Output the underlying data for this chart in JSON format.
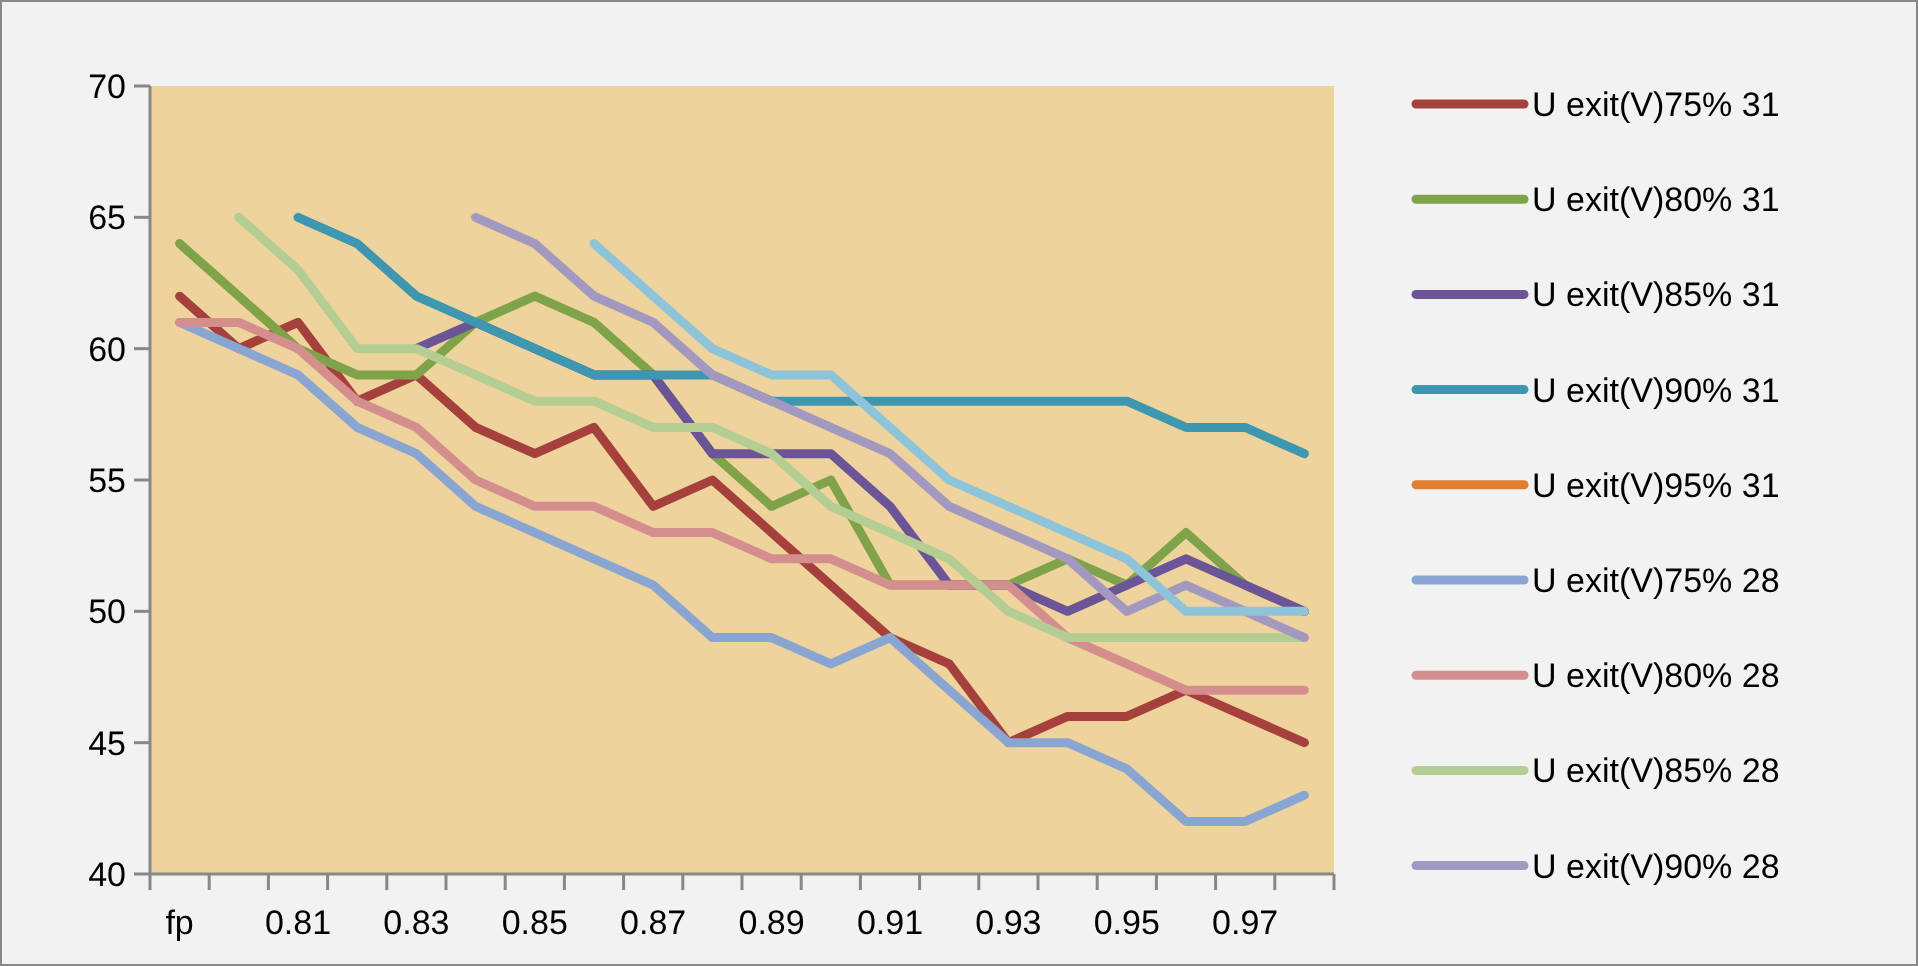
{
  "chart_data": {
    "type": "line",
    "categories": [
      "fp",
      null,
      "0.81",
      null,
      "0.83",
      null,
      "0.85",
      null,
      "0.87",
      null,
      "0.89",
      null,
      "0.91",
      null,
      "0.93",
      null,
      "0.95",
      null,
      "0.97",
      null
    ],
    "ylim": [
      40,
      70
    ],
    "yticks": [
      40,
      45,
      50,
      55,
      60,
      65,
      70
    ],
    "grid": false,
    "legend": "right",
    "marker": "none",
    "line_style": "solid",
    "series": [
      {
        "name": "U exit(V)75% 31",
        "color": "#a5403d",
        "values": [
          62,
          60,
          61,
          58,
          59,
          57,
          56,
          57,
          54,
          55,
          53,
          51,
          49,
          48,
          45,
          46,
          46,
          47,
          46,
          45
        ]
      },
      {
        "name": "U exit(V)80% 31",
        "color": "#7fa348",
        "values": [
          64,
          62,
          60,
          59,
          59,
          61,
          62,
          61,
          59,
          56,
          54,
          55,
          51,
          51,
          51,
          52,
          51,
          53,
          51,
          50
        ]
      },
      {
        "name": "U exit(V)85% 31",
        "color": "#6b5497",
        "values": [
          null,
          null,
          null,
          null,
          60,
          61,
          60,
          59,
          59,
          56,
          56,
          56,
          54,
          51,
          51,
          50,
          51,
          52,
          51,
          50
        ]
      },
      {
        "name": "U exit(V)90% 31",
        "color": "#3d97b1",
        "values": [
          null,
          null,
          65,
          64,
          62,
          61,
          60,
          59,
          59,
          59,
          58,
          58,
          58,
          58,
          58,
          58,
          58,
          57,
          57,
          56
        ]
      },
      {
        "name": "U exit(V)95% 31",
        "color": "#e07f33",
        "values": [
          null,
          null,
          null,
          null,
          null,
          null,
          null,
          null,
          null,
          null,
          null,
          null,
          null,
          null,
          null,
          null,
          null,
          null,
          null,
          null
        ]
      },
      {
        "name": "U exit(V)75% 28",
        "color": "#89a6d2",
        "values": [
          61,
          60,
          59,
          57,
          56,
          54,
          53,
          52,
          51,
          49,
          49,
          48,
          49,
          47,
          45,
          45,
          44,
          42,
          42,
          43
        ]
      },
      {
        "name": "U exit(V)80% 28",
        "color": "#d48e8d",
        "values": [
          61,
          61,
          60,
          58,
          57,
          55,
          54,
          54,
          53,
          53,
          52,
          52,
          51,
          51,
          51,
          49,
          48,
          47,
          47,
          47
        ]
      },
      {
        "name": "U exit(V)85% 28",
        "color": "#b3cd93",
        "values": [
          null,
          65,
          63,
          60,
          60,
          59,
          58,
          58,
          57,
          57,
          56,
          54,
          53,
          52,
          50,
          49,
          49,
          49,
          49,
          49
        ]
      },
      {
        "name": "U exit(V)90% 28",
        "color": "#a398c0",
        "values": [
          null,
          null,
          null,
          null,
          null,
          65,
          64,
          62,
          61,
          59,
          58,
          57,
          56,
          54,
          53,
          52,
          50,
          51,
          50,
          49
        ]
      },
      {
        "color": "#8ec4da",
        "values": [
          null,
          null,
          null,
          null,
          null,
          null,
          null,
          64,
          62,
          60,
          59,
          59,
          57,
          55,
          54,
          53,
          52,
          50,
          50,
          50
        ]
      }
    ]
  }
}
